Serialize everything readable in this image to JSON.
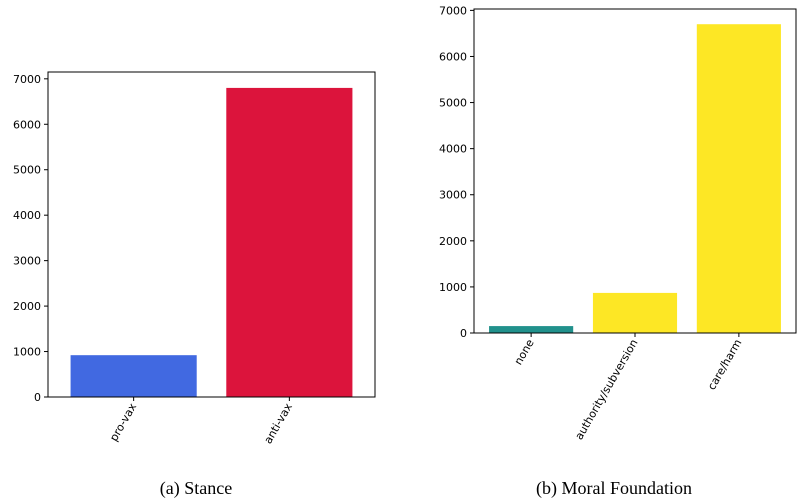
{
  "chart_data": [
    {
      "type": "bar",
      "caption": "(a) Stance",
      "categories": [
        "pro-vax",
        "anti-vax"
      ],
      "values": [
        920,
        6800
      ],
      "colors": [
        "#4169e1",
        "#dc143c"
      ],
      "yticks": [
        0,
        1000,
        2000,
        3000,
        4000,
        5000,
        6000,
        7000
      ],
      "ylim": [
        0,
        7150
      ],
      "xlabel": "",
      "ylabel": "",
      "grid": false,
      "legend": "none"
    },
    {
      "type": "bar",
      "caption": "(b) Moral Foundation",
      "categories": [
        "none",
        "authority/subversion",
        "care/harm"
      ],
      "values": [
        150,
        870,
        6700
      ],
      "colors": [
        "#21918c",
        "#fde725",
        "#fde725"
      ],
      "yticks": [
        0,
        1000,
        2000,
        3000,
        4000,
        5000,
        6000,
        7000
      ],
      "ylim": [
        0,
        7030
      ],
      "xlabel": "",
      "ylabel": "",
      "grid": false,
      "legend": "none"
    }
  ]
}
